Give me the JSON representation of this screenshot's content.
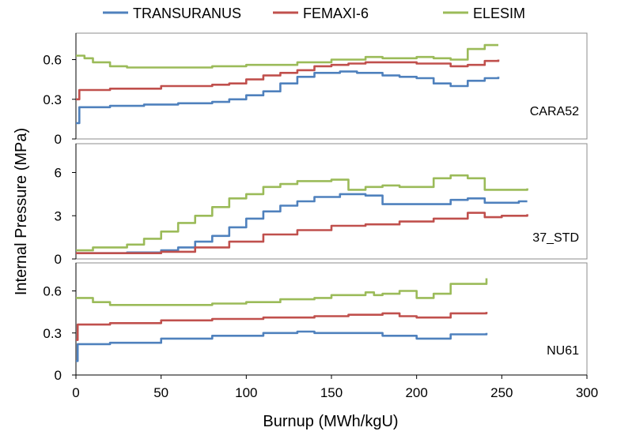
{
  "chart_data": {
    "type": "line",
    "xlabel": "Burnup (MWh/kgU)",
    "ylabel": "Internal Pressure (MPa)",
    "xlim": [
      0,
      300
    ],
    "xticks": [
      "0",
      "50",
      "100",
      "150",
      "200",
      "250",
      "300"
    ],
    "xtick_values": [
      0,
      50,
      100,
      150,
      200,
      250,
      300
    ],
    "legend": {
      "position": "top",
      "entries": [
        "TRANSURANUS",
        "FEMAXI-6",
        "ELESIM"
      ]
    },
    "series_colors": [
      "#4f81bd",
      "#c0504d",
      "#9bbb59"
    ],
    "grid": false,
    "panels": [
      {
        "label": "CARA52",
        "ylim": [
          0,
          0.8
        ],
        "yticks": [
          "0",
          "0.3",
          "0.6"
        ],
        "ytick_values": [
          0,
          0.3,
          0.6
        ],
        "series": [
          {
            "x": [
              0,
              2,
              20,
              40,
              60,
              80,
              90,
              100,
              110,
              120,
              130,
              140,
              155,
              165,
              175,
              180,
              190,
              200,
              210,
              220,
              230,
              240,
              248
            ],
            "values": [
              0.12,
              0.24,
              0.25,
              0.26,
              0.27,
              0.28,
              0.3,
              0.33,
              0.36,
              0.42,
              0.47,
              0.5,
              0.51,
              0.5,
              0.5,
              0.48,
              0.47,
              0.46,
              0.42,
              0.4,
              0.44,
              0.46,
              0.47
            ]
          },
          {
            "x": [
              0,
              2,
              20,
              50,
              80,
              90,
              100,
              110,
              120,
              130,
              140,
              150,
              160,
              170,
              180,
              190,
              200,
              210,
              220,
              230,
              240,
              248
            ],
            "values": [
              0.3,
              0.37,
              0.38,
              0.4,
              0.41,
              0.42,
              0.45,
              0.48,
              0.5,
              0.52,
              0.55,
              0.56,
              0.57,
              0.58,
              0.58,
              0.58,
              0.57,
              0.57,
              0.55,
              0.56,
              0.59,
              0.6
            ]
          },
          {
            "x": [
              0,
              5,
              10,
              20,
              30,
              50,
              80,
              100,
              130,
              150,
              170,
              180,
              200,
              210,
              220,
              230,
              240,
              248
            ],
            "values": [
              0.63,
              0.61,
              0.58,
              0.55,
              0.54,
              0.54,
              0.55,
              0.56,
              0.58,
              0.6,
              0.62,
              0.61,
              0.62,
              0.61,
              0.6,
              0.68,
              0.71,
              0.71
            ]
          }
        ]
      },
      {
        "label": "37_STD",
        "ylim": [
          0,
          8
        ],
        "yticks": [
          "0",
          "3",
          "6"
        ],
        "ytick_values": [
          0,
          3,
          6
        ],
        "series": [
          {
            "x": [
              0,
              10,
              30,
              50,
              60,
              70,
              80,
              90,
              100,
              110,
              120,
              130,
              140,
              155,
              170,
              180,
              200,
              220,
              230,
              240,
              250,
              260,
              265
            ],
            "values": [
              0.4,
              0.4,
              0.45,
              0.6,
              0.8,
              1.2,
              1.6,
              2.2,
              2.8,
              3.3,
              3.7,
              4.0,
              4.3,
              4.5,
              4.4,
              3.8,
              3.8,
              4.1,
              4.2,
              3.9,
              3.9,
              4.0,
              4.0
            ]
          },
          {
            "x": [
              0,
              20,
              50,
              70,
              90,
              110,
              130,
              150,
              170,
              190,
              210,
              230,
              240,
              250,
              265
            ],
            "values": [
              0.4,
              0.4,
              0.5,
              0.8,
              1.2,
              1.7,
              2.0,
              2.3,
              2.4,
              2.6,
              2.8,
              3.2,
              2.9,
              3.0,
              3.1
            ]
          },
          {
            "x": [
              0,
              5,
              10,
              20,
              30,
              40,
              50,
              60,
              70,
              80,
              90,
              100,
              110,
              120,
              130,
              150,
              160,
              170,
              180,
              190,
              200,
              210,
              220,
              230,
              240,
              255,
              265
            ],
            "values": [
              0.6,
              0.6,
              0.8,
              0.8,
              1.0,
              1.4,
              1.9,
              2.5,
              3.0,
              3.6,
              4.2,
              4.5,
              5.0,
              5.2,
              5.4,
              5.5,
              4.8,
              5.0,
              5.1,
              5.0,
              5.0,
              5.6,
              5.8,
              5.6,
              4.8,
              4.8,
              4.9
            ]
          }
        ]
      },
      {
        "label": "NU61",
        "ylim": [
          0,
          0.8
        ],
        "yticks": [
          "0",
          "0.3",
          "0.6"
        ],
        "ytick_values": [
          0,
          0.3,
          0.6
        ],
        "series": [
          {
            "x": [
              0,
              1,
              20,
              50,
              80,
              110,
              130,
              140,
              160,
              175,
              180,
              195,
              200,
              220,
              241
            ],
            "values": [
              0.1,
              0.22,
              0.23,
              0.26,
              0.28,
              0.3,
              0.31,
              0.3,
              0.3,
              0.3,
              0.28,
              0.28,
              0.26,
              0.29,
              0.3
            ]
          },
          {
            "x": [
              0,
              1,
              20,
              50,
              80,
              110,
              140,
              160,
              180,
              190,
              200,
              220,
              241
            ],
            "values": [
              0.25,
              0.36,
              0.37,
              0.39,
              0.4,
              0.41,
              0.42,
              0.43,
              0.44,
              0.42,
              0.41,
              0.44,
              0.45
            ]
          },
          {
            "x": [
              0,
              10,
              20,
              50,
              80,
              100,
              120,
              140,
              150,
              170,
              175,
              180,
              190,
              200,
              210,
              220,
              241
            ],
            "values": [
              0.55,
              0.52,
              0.5,
              0.5,
              0.51,
              0.52,
              0.54,
              0.55,
              0.57,
              0.59,
              0.57,
              0.58,
              0.6,
              0.55,
              0.58,
              0.65,
              0.69
            ]
          }
        ]
      }
    ]
  }
}
